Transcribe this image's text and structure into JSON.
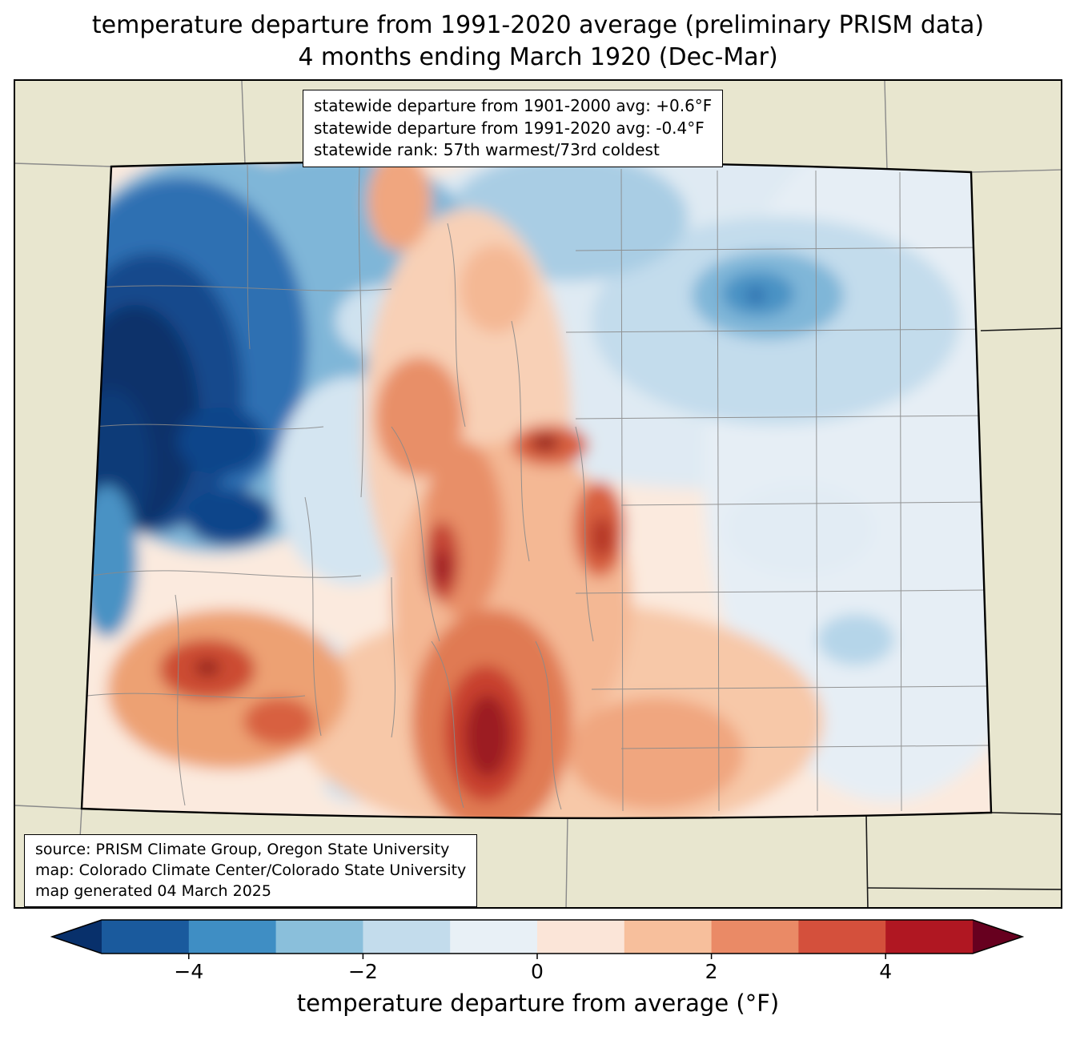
{
  "title": {
    "line1": "temperature departure from 1991-2020 average (preliminary PRISM data)",
    "line2": "4 months ending March 1920 (Dec-Mar)"
  },
  "stats_box": {
    "line1": "statewide departure from 1901-2000 avg: +0.6°F",
    "line2": "statewide departure from 1991-2020 avg: -0.4°F",
    "line3": "statewide rank: 57th warmest/73rd coldest"
  },
  "source_box": {
    "line1": "source: PRISM Climate Group, Oregon State University",
    "line2": "map: Colorado Climate Center/Colorado State University",
    "line3": "map generated 04 March 2025"
  },
  "colorbar": {
    "label": "temperature departure from average (°F)",
    "range": [
      -5,
      5
    ],
    "ticks": [
      {
        "value": -4,
        "label": "−4"
      },
      {
        "value": -2,
        "label": "−2"
      },
      {
        "value": 0,
        "label": "0"
      },
      {
        "value": 2,
        "label": "2"
      },
      {
        "value": 4,
        "label": "4"
      }
    ],
    "segment_colors": [
      "#1a5a9d",
      "#3f8ec4",
      "#8abfdb",
      "#c3dcec",
      "#e8f0f6",
      "#fbe5d8",
      "#f7bf9c",
      "#ea8a66",
      "#d4503c",
      "#b01722"
    ],
    "left_arrow_color": "#08306b",
    "right_arrow_color": "#67001f",
    "outline_color": "#000000"
  },
  "map": {
    "region": "Colorado",
    "surrounding_background_color": "#e8e6cf",
    "state_border_color": "#000000",
    "county_line_color": "#8a8a8a"
  }
}
